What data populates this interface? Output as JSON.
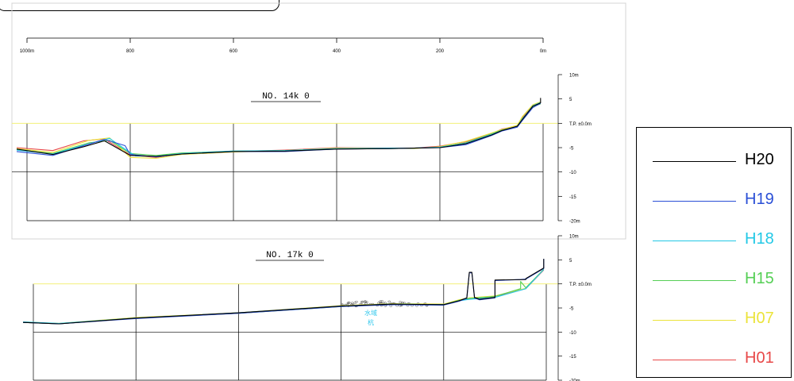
{
  "chart_data": [
    {
      "type": "line",
      "title": "NO. 14k 0",
      "x_ticks": [
        "1000m",
        "800",
        "600",
        "400",
        "200",
        "0m"
      ],
      "xlim": [
        1000,
        0
      ],
      "y_ticks": [
        {
          "value": 10,
          "label": "10m"
        },
        {
          "value": 5,
          "label": "5"
        },
        {
          "value": 0,
          "label": "T.P. ±0.0m"
        },
        {
          "value": -5,
          "label": "-5"
        },
        {
          "value": -10,
          "label": "-10"
        },
        {
          "value": -15,
          "label": "-15"
        },
        {
          "value": -20,
          "label": "-20m"
        }
      ],
      "ylim": [
        -20,
        10
      ],
      "reference_line": {
        "value": 0,
        "color": "#f3f07a"
      },
      "series": [
        {
          "name": "H20",
          "color": "#000000",
          "x": [
            1020,
            950,
            890,
            850,
            800,
            750,
            700,
            600,
            500,
            400,
            300,
            250,
            200,
            150,
            100,
            80,
            50,
            40,
            20,
            5,
            5
          ],
          "y": [
            -5.3,
            -6.4,
            -4.8,
            -3.6,
            -6.6,
            -6.8,
            -6.3,
            -5.8,
            -5.7,
            -5.3,
            -5.2,
            -5.1,
            -5.0,
            -4.2,
            -2.4,
            -1.5,
            -0.6,
            0.8,
            3.5,
            4.2,
            5.2
          ]
        },
        {
          "name": "H19",
          "color": "#2a4fd6",
          "x": [
            1020,
            950,
            890,
            850,
            810,
            800,
            750,
            700,
            600,
            500,
            400,
            300,
            250,
            200,
            150,
            100,
            80,
            50,
            40,
            20,
            5
          ],
          "y": [
            -5.8,
            -6.6,
            -4.6,
            -3.3,
            -4.6,
            -6.4,
            -6.9,
            -6.3,
            -5.8,
            -5.8,
            -5.3,
            -5.2,
            -5.1,
            -5.0,
            -4.4,
            -2.5,
            -1.6,
            -0.8,
            0.6,
            3.2,
            4.1
          ]
        },
        {
          "name": "H18",
          "color": "#22c8e6",
          "x": [
            1020,
            950,
            880,
            840,
            820,
            790,
            750,
            700,
            600,
            500,
            400,
            300,
            250,
            200,
            150,
            100,
            80,
            50,
            40,
            20,
            5
          ],
          "y": [
            -5.5,
            -6.3,
            -4.2,
            -3.1,
            -4.6,
            -6.7,
            -6.8,
            -6.2,
            -5.7,
            -5.6,
            -5.2,
            -5.1,
            -5.1,
            -4.9,
            -4.1,
            -2.3,
            -1.5,
            -0.6,
            0.9,
            3.6,
            4.3
          ]
        },
        {
          "name": "H15",
          "color": "#55cf55",
          "x": [
            1020,
            950,
            880,
            840,
            800,
            750,
            700,
            600,
            500,
            400,
            300,
            250,
            200,
            150,
            100,
            80,
            50,
            40,
            20,
            5
          ],
          "y": [
            -5.4,
            -6.2,
            -4.0,
            -3.5,
            -6.2,
            -6.6,
            -6.1,
            -5.7,
            -5.6,
            -5.2,
            -5.2,
            -5.1,
            -4.9,
            -4.0,
            -2.2,
            -1.4,
            -0.7,
            1.0,
            3.4,
            4.0
          ]
        },
        {
          "name": "H07",
          "color": "#ebe33a",
          "x": [
            1020,
            950,
            880,
            840,
            800,
            750,
            700,
            600,
            500,
            400,
            300,
            250,
            200,
            150,
            100,
            80,
            50,
            40,
            20,
            5
          ],
          "y": [
            -5.2,
            -6.0,
            -3.5,
            -3.0,
            -7.0,
            -7.2,
            -6.4,
            -5.9,
            -5.6,
            -5.1,
            -5.1,
            -5.2,
            -4.8,
            -3.7,
            -2.0,
            -1.3,
            -0.4,
            1.4,
            3.8,
            4.4
          ]
        },
        {
          "name": "H01",
          "color": "#e84848",
          "x": [
            1020,
            950,
            890,
            850,
            800,
            750,
            700,
            600,
            500,
            400,
            300,
            250,
            200,
            150,
            100,
            80,
            50,
            40,
            20,
            5
          ],
          "y": [
            -5.0,
            -5.6,
            -3.6,
            -3.2,
            -6.5,
            -7.0,
            -6.2,
            -5.8,
            -5.5,
            -5.0,
            -5.1,
            -5.1,
            -4.7,
            -3.8,
            -2.1,
            -1.2,
            -0.5,
            1.2,
            3.7,
            4.2
          ]
        }
      ]
    },
    {
      "type": "line",
      "title": "NO. 17k 0",
      "xlim": [
        1000,
        0
      ],
      "y_ticks": [
        {
          "value": 10,
          "label": "10m"
        },
        {
          "value": 5,
          "label": "5"
        },
        {
          "value": 0,
          "label": "T.P. ±0.0m"
        },
        {
          "value": -5,
          "label": "-5"
        },
        {
          "value": -10,
          "label": "-10"
        },
        {
          "value": -15,
          "label": "-15"
        },
        {
          "value": -20,
          "label": "-20m"
        }
      ],
      "ylim": [
        -20,
        10
      ],
      "reference_line": {
        "value": 0,
        "color": "#f3f07a"
      },
      "annotation": {
        "lines": [
          "水域",
          "杭"
        ],
        "color": "#33c8ec",
        "x": 330,
        "y": -6.6
      },
      "series": [
        {
          "name": "H20",
          "color": "#000000",
          "x": [
            1020,
            950,
            800,
            600,
            400,
            300,
            200,
            170,
            155,
            150,
            145,
            140,
            130,
            100,
            100,
            40,
            40,
            5,
            5
          ],
          "y": [
            -8.0,
            -8.3,
            -7.1,
            -6.0,
            -4.6,
            -4.2,
            -4.3,
            -3.5,
            -2.9,
            2.4,
            2.4,
            -2.8,
            -3.2,
            -2.8,
            0.8,
            0.9,
            1.1,
            3.3,
            5.2
          ]
        },
        {
          "name": "H19",
          "color": "#2a4fd6",
          "x": [
            1020,
            950,
            800,
            600,
            400,
            300,
            200,
            170,
            155,
            150,
            145,
            140,
            130,
            100,
            100,
            50,
            40,
            5,
            5
          ],
          "y": [
            -8.0,
            -8.3,
            -7.2,
            -6.1,
            -4.7,
            -4.3,
            -4.4,
            -3.6,
            -3.0,
            2.3,
            2.3,
            -2.9,
            -3.3,
            -2.9,
            0.7,
            0.9,
            1.0,
            3.2,
            5.2
          ]
        },
        {
          "name": "H18",
          "color": "#22c8e6",
          "x": [
            1020,
            950,
            800,
            600,
            400,
            300,
            200,
            170,
            150,
            100,
            40,
            5
          ],
          "y": [
            -7.9,
            -8.2,
            -7.1,
            -6.0,
            -4.6,
            -4.2,
            -4.3,
            -3.5,
            -3.2,
            -2.8,
            -1.0,
            3.0
          ]
        },
        {
          "name": "H15",
          "color": "#55cf55",
          "x": [
            1020,
            950,
            800,
            600,
            400,
            300,
            200,
            170,
            150,
            100,
            50,
            50,
            40,
            5
          ],
          "y": [
            -8.0,
            -8.3,
            -7.1,
            -6.1,
            -4.7,
            -4.2,
            -4.3,
            -3.4,
            -3.0,
            -2.6,
            -1.0,
            0.5,
            -0.8,
            3.0
          ]
        },
        {
          "name": "H07",
          "color": "#ebe33a",
          "x": [
            1020,
            950,
            800,
            600,
            400,
            300,
            200,
            170,
            150,
            100,
            40,
            5
          ],
          "y": [
            -7.9,
            -8.2,
            -7.0,
            -6.0,
            -4.5,
            -4.1,
            -4.2,
            -3.3,
            -2.9,
            -2.5,
            -0.9,
            3.1
          ]
        },
        {
          "name": "H01",
          "color": "#e84848",
          "x": [
            1020,
            950,
            800,
            600,
            400,
            300,
            200,
            170,
            150,
            100,
            40,
            5
          ],
          "y": [
            -8.0,
            -8.3,
            -7.1,
            -6.1,
            -4.6,
            -4.2,
            -4.3,
            -3.4,
            -3.0,
            -2.6,
            -1.0,
            2.9
          ]
        }
      ]
    }
  ],
  "legend": {
    "items": [
      {
        "label": "H20",
        "color": "#000000"
      },
      {
        "label": "H19",
        "color": "#2a4fd6"
      },
      {
        "label": "H18",
        "color": "#22c8e6"
      },
      {
        "label": "H15",
        "color": "#55cf55"
      },
      {
        "label": "H07",
        "color": "#ebe33a"
      },
      {
        "label": "H01",
        "color": "#e84848"
      }
    ]
  }
}
